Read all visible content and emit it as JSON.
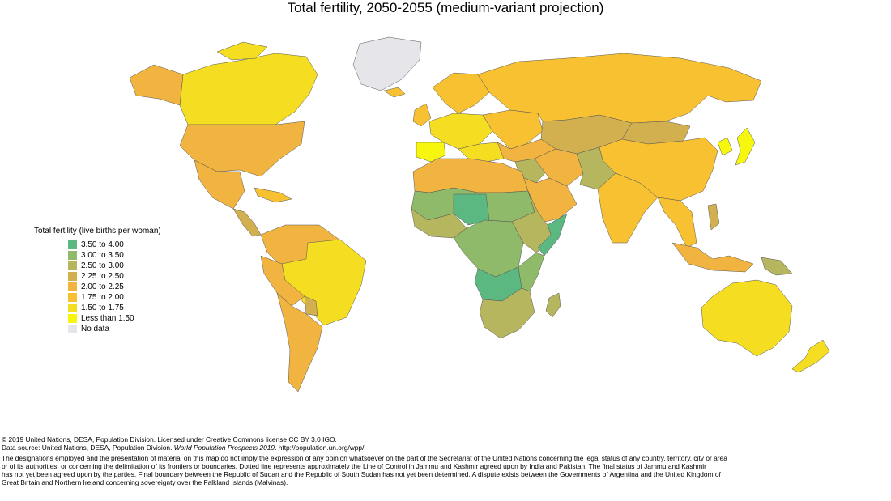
{
  "title": "Total fertility, 2050-2055 (medium-variant projection)",
  "legend": {
    "title": "Total fertility (live births per woman)",
    "items": [
      {
        "label": "3.50 to 4.00",
        "color": "#5cb881"
      },
      {
        "label": "3.00 to 3.50",
        "color": "#8fba6a"
      },
      {
        "label": "2.50 to 3.00",
        "color": "#b6b65e"
      },
      {
        "label": "2.25 to 2.50",
        "color": "#d3b04f"
      },
      {
        "label": "2.00 to 2.25",
        "color": "#f1b440"
      },
      {
        "label": "1.75 to 2.00",
        "color": "#f7c132"
      },
      {
        "label": "1.50 to 1.75",
        "color": "#f5de22"
      },
      {
        "label": "Less than 1.50",
        "color": "#f7f60f"
      },
      {
        "label": "No data",
        "color": "#e5e5ea"
      }
    ]
  },
  "footer": {
    "copyright": "© 2019 United Nations, DESA, Population Division. Licensed under Creative Commons license CC BY 3.0 IGO.",
    "source_prefix": "Data source: United Nations, DESA, Population Division. ",
    "source_title": "World Population Prospects 2019",
    "source_suffix": ". http://population.un.org/wpp/",
    "disclaimer_lines": [
      "The designations employed and the presentation of material on this map do not imply the expression of any opinion whatsoever on the part of the Secretariat of the United Nations concerning the legal status of any country, territory, city or area",
      "or of its authorities, or concerning the delimitation of its frontiers or boundaries. Dotted line represents approximately the Line of Control in Jammu and Kashmir agreed upon by India and Pakistan. The final status of Jammu and Kashmir",
      "has not yet been agreed upon by the parties. Final boundary between the Republic of Sudan and the Republic of South Sudan has not yet been determined. A dispute exists between the Governments of Argentina and the United Kingdom of",
      "Great Britain and Northern Ireland concerning sovereignty over the Falkland Islands (Malvinas)."
    ]
  }
}
